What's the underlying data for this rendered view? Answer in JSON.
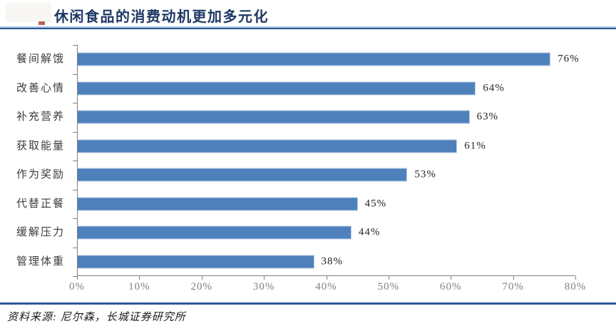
{
  "page": {
    "title": "休闲食品的消费动机更加多元化",
    "source": "资料来源: 尼尔森，长城证券研究所"
  },
  "colors": {
    "bar": "#4e80bc",
    "bar_edge": "#b9cde5",
    "title": "#1f3864",
    "rule_dark": "#2b5797",
    "rule_light": "#adc2e0",
    "axis": "#808080",
    "tick_label": "#7f7f7f",
    "value_label": "#262626",
    "category_label": "#3d3d3d"
  },
  "chart_data": {
    "type": "bar",
    "orientation": "horizontal",
    "title": "休闲食品的消费动机更加多元化",
    "categories": [
      "餐间解饿",
      "改善心情",
      "补充营养",
      "获取能量",
      "作为奖励",
      "代替正餐",
      "缓解压力",
      "管理体重"
    ],
    "values": [
      76,
      64,
      63,
      61,
      53,
      45,
      44,
      38
    ],
    "value_labels": [
      "76%",
      "64%",
      "63%",
      "61%",
      "53%",
      "45%",
      "44%",
      "38%"
    ],
    "x_ticks": [
      "0%",
      "10%",
      "20%",
      "30%",
      "40%",
      "50%",
      "60%",
      "70%",
      "80%"
    ],
    "x_tick_values": [
      0,
      10,
      20,
      30,
      40,
      50,
      60,
      70,
      80
    ],
    "xlim": [
      0,
      80
    ],
    "xlabel": "",
    "ylabel": "",
    "grid": false,
    "legend": false,
    "data_labels": "outside-end",
    "source": "资料来源: 尼尔森，长城证券研究所"
  }
}
